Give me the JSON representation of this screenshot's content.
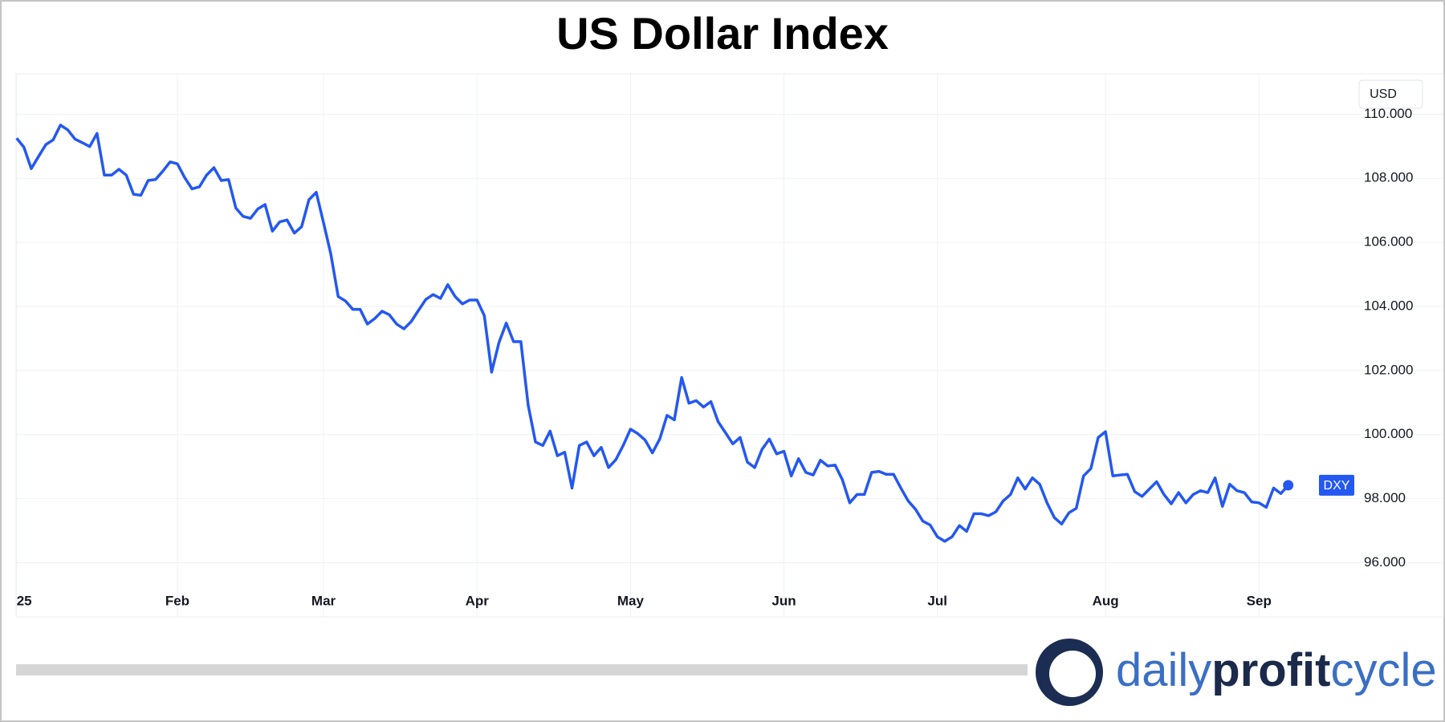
{
  "chart_data": {
    "type": "line",
    "title": "US Dollar Index",
    "currency_label": "USD",
    "categories": [
      "25",
      null,
      null,
      null,
      null,
      null,
      null,
      null,
      null,
      null,
      null,
      null,
      null,
      null,
      null,
      null,
      null,
      null,
      null,
      null,
      null,
      null,
      "Feb",
      null,
      null,
      null,
      null,
      null,
      null,
      null,
      null,
      null,
      null,
      null,
      null,
      null,
      null,
      null,
      null,
      null,
      null,
      null,
      "Mar",
      null,
      null,
      null,
      null,
      null,
      null,
      null,
      null,
      null,
      null,
      null,
      null,
      null,
      null,
      null,
      null,
      null,
      null,
      null,
      null,
      "Apr",
      null,
      null,
      null,
      null,
      null,
      null,
      null,
      null,
      null,
      null,
      null,
      null,
      null,
      null,
      null,
      null,
      null,
      null,
      null,
      null,
      "May",
      null,
      null,
      null,
      null,
      null,
      null,
      null,
      null,
      null,
      null,
      null,
      null,
      null,
      null,
      null,
      null,
      null,
      null,
      null,
      null,
      "Jun",
      null,
      null,
      null,
      null,
      null,
      null,
      null,
      null,
      null,
      null,
      null,
      null,
      null,
      null,
      null,
      null,
      null,
      null,
      null,
      null,
      "Jul",
      null,
      null,
      null,
      null,
      null,
      null,
      null,
      null,
      null,
      null,
      null,
      null,
      null,
      null,
      null,
      null,
      null,
      null,
      null,
      null,
      null,
      null,
      "Aug",
      null,
      null,
      null,
      null,
      null,
      null,
      null,
      null,
      null,
      null,
      null,
      null,
      null,
      null,
      null,
      null,
      null,
      null,
      null,
      null,
      "Sep",
      null,
      null,
      null,
      null
    ],
    "series": [
      {
        "name": "DXY",
        "color": "#2458f0",
        "values": [
          109.25,
          108.97,
          108.3,
          108.68,
          109.05,
          109.2,
          109.66,
          109.51,
          109.22,
          109.11,
          108.99,
          109.4,
          108.1,
          108.1,
          108.28,
          108.1,
          107.5,
          107.47,
          107.93,
          107.96,
          108.22,
          108.51,
          108.45,
          108.02,
          107.67,
          107.73,
          108.1,
          108.33,
          107.93,
          107.96,
          107.07,
          106.81,
          106.75,
          107.04,
          107.18,
          106.35,
          106.64,
          106.7,
          106.29,
          106.49,
          107.33,
          107.56,
          106.61,
          105.63,
          104.31,
          104.17,
          103.91,
          103.91,
          103.45,
          103.62,
          103.85,
          103.74,
          103.45,
          103.3,
          103.53,
          103.88,
          104.22,
          104.37,
          104.25,
          104.68,
          104.31,
          104.08,
          104.2,
          104.2,
          103.71,
          101.95,
          102.87,
          103.48,
          102.9,
          102.9,
          100.92,
          99.77,
          99.66,
          100.11,
          99.34,
          99.45,
          98.33,
          99.66,
          99.77,
          99.34,
          99.6,
          98.97,
          99.22,
          99.66,
          100.17,
          100.03,
          99.83,
          99.43,
          99.86,
          100.6,
          100.46,
          101.78,
          100.98,
          101.06,
          100.86,
          101.03,
          100.4,
          100.06,
          99.71,
          99.91,
          99.14,
          98.97,
          99.54,
          99.86,
          99.4,
          99.48,
          98.71,
          99.25,
          98.82,
          98.74,
          99.2,
          99.02,
          99.05,
          98.59,
          97.87,
          98.13,
          98.13,
          98.82,
          98.85,
          98.76,
          98.76,
          98.33,
          97.93,
          97.67,
          97.3,
          97.18,
          96.81,
          96.67,
          96.81,
          97.16,
          96.98,
          97.53,
          97.53,
          97.47,
          97.59,
          97.93,
          98.13,
          98.65,
          98.3,
          98.65,
          98.45,
          97.87,
          97.41,
          97.21,
          97.56,
          97.7,
          98.71,
          98.94,
          99.91,
          100.09,
          98.71,
          98.74,
          98.76,
          98.22,
          98.07,
          98.3,
          98.53,
          98.13,
          97.84,
          98.19,
          97.87,
          98.13,
          98.25,
          98.19,
          98.65,
          97.76,
          98.45,
          98.25,
          98.19,
          97.9,
          97.87,
          97.73,
          98.33,
          98.16,
          98.42
        ]
      }
    ],
    "ylim": [
      94.31,
      111.26
    ],
    "yticks": [
      {
        "value": 96,
        "label": "96.000"
      },
      {
        "value": 98,
        "label": "98.000"
      },
      {
        "value": 100,
        "label": "100.000"
      },
      {
        "value": 102,
        "label": "102.000"
      },
      {
        "value": 104,
        "label": "104.000"
      },
      {
        "value": 106,
        "label": "106.000"
      },
      {
        "value": 108,
        "label": "108.000"
      },
      {
        "value": 110,
        "label": "110.000"
      }
    ],
    "grid": true
  },
  "logo": {
    "parts": [
      "daily",
      "profit",
      "cycle"
    ]
  }
}
